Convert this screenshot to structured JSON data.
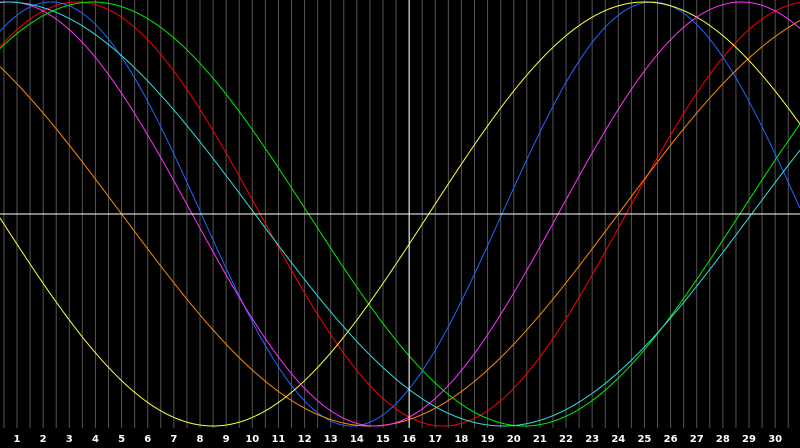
{
  "chart_data": {
    "type": "line",
    "title": "",
    "xlabel": "",
    "ylabel": "",
    "x_ticks": [
      "1",
      "2",
      "3",
      "4",
      "5",
      "6",
      "7",
      "8",
      "9",
      "10",
      "11",
      "12",
      "13",
      "14",
      "15",
      "16",
      "17",
      "18",
      "19",
      "20",
      "21",
      "22",
      "23",
      "24",
      "25",
      "26",
      "27",
      "28",
      "29",
      "30"
    ],
    "xlim": [
      0.35,
      30.95
    ],
    "ylim": [
      -1,
      1
    ],
    "crosshair": {
      "x": 16,
      "y": 0
    },
    "grid": "vertical",
    "background": "#000000",
    "grid_color": "#555555",
    "crosshair_color": "#ffffff",
    "series": [
      {
        "color": "#ff0000",
        "period": 28,
        "peak_x": 3.3,
        "values": [
          0.78,
          0.94,
          0.998,
          0.96,
          0.84,
          0.65,
          0.4,
          0.13,
          -0.16,
          -0.44,
          -0.67,
          -0.85,
          -0.96,
          -0.998,
          -0.97,
          -0.86,
          -0.68,
          -0.45,
          -0.18,
          0.11,
          0.38,
          0.62,
          0.82,
          0.95,
          0.998,
          0.96,
          0.85,
          0.66,
          0.42,
          0.15
        ]
      },
      {
        "color": "#00ee00",
        "period": 33,
        "peak_x": 3.9,
        "values": [
          0.84,
          0.95,
          0.998,
          0.98,
          0.91,
          0.78,
          0.6,
          0.39,
          0.16,
          -0.08,
          -0.32,
          -0.54,
          -0.73,
          -0.87,
          -0.96,
          -0.998,
          -0.98,
          -0.91,
          -0.79,
          -0.62,
          -0.41,
          -0.18,
          0.06,
          0.3,
          0.52,
          0.72,
          0.87,
          0.96,
          0.998,
          0.98
        ]
      },
      {
        "color": "#2266ff",
        "period": 23,
        "peak_x": 2.3,
        "values": [
          0.96,
          0.998,
          0.96,
          0.83,
          0.62,
          0.36,
          0.07,
          -0.23,
          -0.51,
          -0.75,
          -0.92,
          -0.998,
          -0.98,
          -0.87,
          -0.67,
          -0.41,
          -0.12,
          0.17,
          0.46,
          0.71,
          0.89,
          0.99,
          0.98,
          0.88,
          0.7,
          0.45,
          0.16,
          -0.13,
          -0.42,
          -0.68
        ]
      },
      {
        "color": "#ff8800",
        "period": 38,
        "peak_x": -4.5,
        "values": [
          0.5,
          0.38,
          0.25,
          0.12,
          -0.01,
          -0.14,
          -0.28,
          -0.4,
          -0.52,
          -0.63,
          -0.73,
          -0.82,
          -0.89,
          -0.94,
          -0.98,
          -0.998,
          -0.99,
          -0.96,
          -0.92,
          -0.86,
          -0.78,
          -0.69,
          -0.58,
          -0.47,
          -0.35,
          -0.22,
          -0.09,
          0.04,
          0.17,
          0.3
        ]
      },
      {
        "color": "#ffff44",
        "period": 33,
        "peak_x": -8.0,
        "values": [
          -0.06,
          -0.26,
          -0.44,
          -0.61,
          -0.75,
          -0.87,
          -0.95,
          -0.99,
          -0.998,
          -0.97,
          -0.91,
          -0.82,
          -0.7,
          -0.55,
          -0.38,
          -0.2,
          -0.01,
          0.18,
          0.37,
          0.54,
          0.69,
          0.82,
          0.92,
          0.98,
          0.998,
          0.98,
          0.93,
          0.85,
          0.74,
          0.6
        ]
      },
      {
        "color": "#ff33ff",
        "period": 28,
        "peak_x": 0.7,
        "values": [
          0.87,
          0.74,
          0.56,
          0.33,
          0.08,
          -0.19,
          -0.44,
          -0.66,
          -0.83,
          -0.95,
          -0.998,
          -0.98,
          -0.89,
          -0.74,
          -0.54,
          -0.3,
          -0.04,
          0.23,
          0.48,
          0.69,
          0.86,
          0.96,
          0.998,
          0.97,
          0.87,
          0.71,
          0.5,
          0.26,
          0.0,
          -0.27
        ]
      },
      {
        "color": "#33dddd",
        "period": 38,
        "peak_x": 0.6,
        "values": [
          0.98,
          0.97,
          0.93,
          0.87,
          0.79,
          0.68,
          0.56,
          0.43,
          0.29,
          0.14,
          -0.01,
          -0.16,
          -0.31,
          -0.45,
          -0.58,
          -0.69,
          -0.79,
          -0.87,
          -0.94,
          -0.98,
          -0.998,
          -0.998,
          -0.98,
          -0.93,
          -0.86,
          -0.78,
          -0.68,
          -0.56,
          -0.42,
          -0.28
        ]
      }
    ]
  }
}
